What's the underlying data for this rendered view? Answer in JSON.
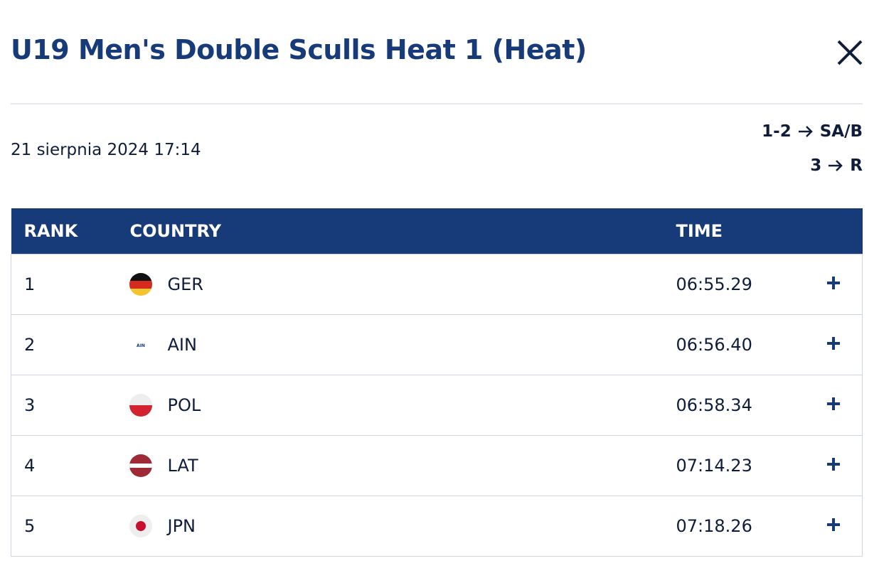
{
  "header": {
    "title": "U19 Men's Double Sculls Heat 1 (Heat)"
  },
  "date": "21 sierpnia 2024 17:14",
  "progression": [
    {
      "places": "1-2",
      "target": "SA/B"
    },
    {
      "places": "3",
      "target": "R"
    }
  ],
  "table": {
    "columns": [
      "RANK",
      "COUNTRY",
      "TIME"
    ],
    "rows": [
      [
        1,
        "GER",
        "06:55.29"
      ],
      [
        2,
        "AIN",
        "06:56.40"
      ],
      [
        3,
        "POL",
        "06:58.34"
      ],
      [
        4,
        "LAT",
        "07:14.23"
      ],
      [
        5,
        "JPN",
        "07:18.26"
      ]
    ]
  }
}
